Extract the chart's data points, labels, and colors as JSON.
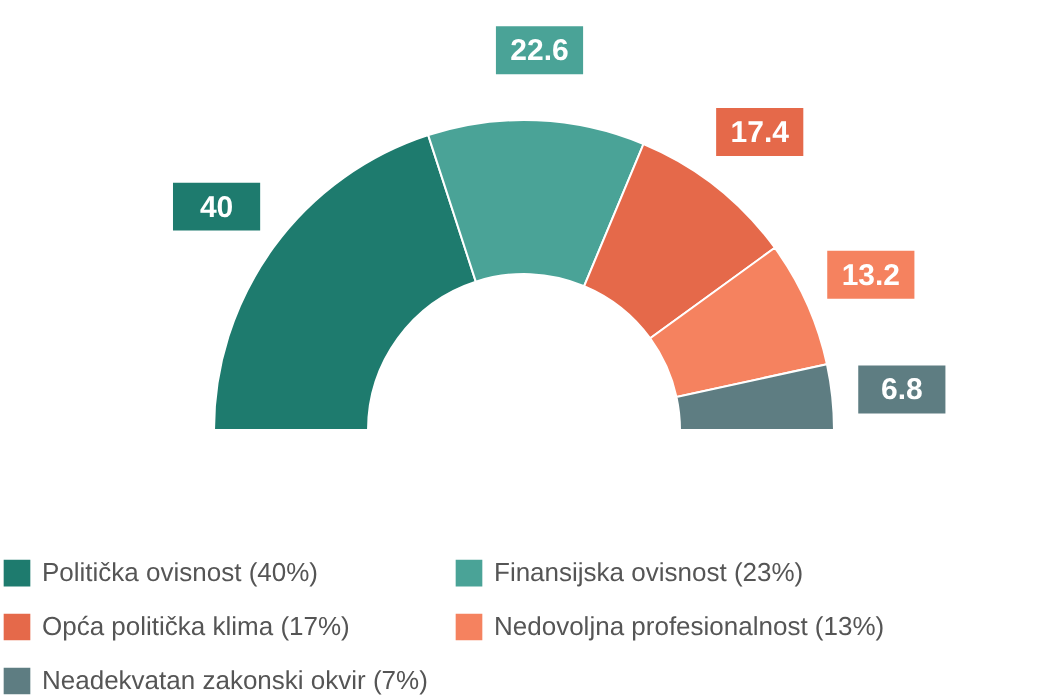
{
  "chart_data": {
    "type": "donut",
    "categories": [
      "Politička ovisnost (40%)",
      "Finansijska ovisnost (23%)",
      "Opća politička klima (17%)",
      "Nedovoljna profesionalnost (13%)",
      "Neadekvatan zakonski okvir (7%)"
    ],
    "values": [
      40,
      22.6,
      17.4,
      13.2,
      6.8
    ],
    "colors": [
      "#1e7b6e",
      "#4aa397",
      "#e5694a",
      "#f5825f",
      "#5e7d82"
    ],
    "data_labels": true,
    "legend": "bottom"
  }
}
